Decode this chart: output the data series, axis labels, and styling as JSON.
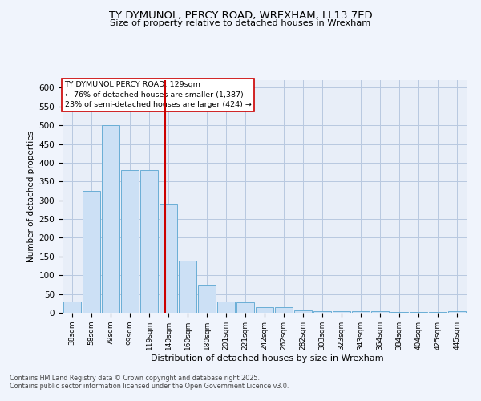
{
  "title1": "TY DYMUNOL, PERCY ROAD, WREXHAM, LL13 7ED",
  "title2": "Size of property relative to detached houses in Wrexham",
  "xlabel": "Distribution of detached houses by size in Wrexham",
  "ylabel": "Number of detached properties",
  "bar_color": "#cce0f5",
  "bar_edge_color": "#6aaed6",
  "background_color": "#e8eef8",
  "grid_color": "#b8c8e0",
  "bins": [
    "38sqm",
    "58sqm",
    "79sqm",
    "99sqm",
    "119sqm",
    "140sqm",
    "160sqm",
    "180sqm",
    "201sqm",
    "221sqm",
    "242sqm",
    "262sqm",
    "282sqm",
    "303sqm",
    "323sqm",
    "343sqm",
    "364sqm",
    "384sqm",
    "404sqm",
    "425sqm",
    "445sqm"
  ],
  "values": [
    30,
    325,
    500,
    380,
    380,
    290,
    140,
    75,
    30,
    28,
    15,
    15,
    7,
    5,
    5,
    5,
    5,
    2,
    2,
    2,
    5
  ],
  "vline_pos": 4.82,
  "vline_color": "#cc0000",
  "annotation_title": "TY DYMUNOL PERCY ROAD: 129sqm",
  "annotation_line1": "← 76% of detached houses are smaller (1,387)",
  "annotation_line2": "23% of semi-detached houses are larger (424) →",
  "annotation_box_color": "#ffffff",
  "annotation_border_color": "#cc0000",
  "footer1": "Contains HM Land Registry data © Crown copyright and database right 2025.",
  "footer2": "Contains public sector information licensed under the Open Government Licence v3.0.",
  "ylim": [
    0,
    620
  ],
  "yticks": [
    0,
    50,
    100,
    150,
    200,
    250,
    300,
    350,
    400,
    450,
    500,
    550,
    600
  ],
  "fig_bg": "#f0f4fc"
}
